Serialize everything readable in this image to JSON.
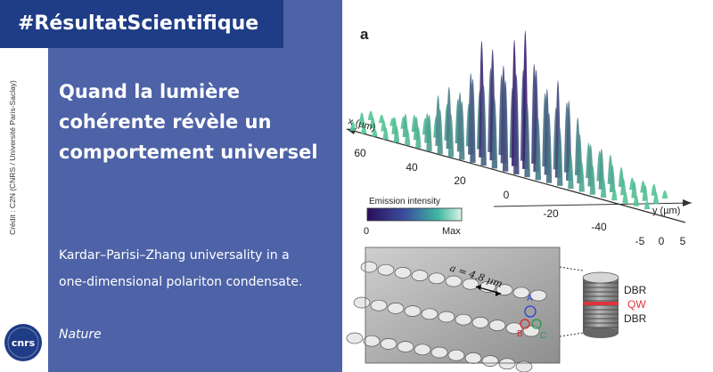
{
  "hashtag": "#RésultatScientifique",
  "title": [
    "Quand la lumière",
    "cohérente révèle un",
    "comportement universel"
  ],
  "paper_title": [
    "Kardar–Parisi–Zhang universality in a",
    "one-dimensional polariton condensate."
  ],
  "journal": "Nature",
  "credit": "Crédit : C2N (CNRS / Université Paris-Saclay)",
  "logo_text": "cnrs",
  "colors": {
    "panel": "#4d62a7",
    "hashtag_bg": "#1f3c86",
    "peak_low": "#3b1f72",
    "peak_high": "#55d39b"
  },
  "figure": {
    "panel_label": "a",
    "x_axis_label": "x (µm)",
    "x_ticks": [
      "60",
      "40",
      "20",
      "0",
      "-20",
      "-40"
    ],
    "y_axis_label": "y (µm)",
    "y_ticks": [
      "-5",
      "0",
      "5"
    ],
    "colorbar_title": "Emission intensity",
    "colorbar_min": "0",
    "colorbar_max": "Max",
    "period_label": "a = 4.8 µm",
    "pillar_labels": [
      "A",
      "B",
      "C"
    ],
    "stack_labels": [
      "DBR",
      "QW",
      "DBR"
    ]
  }
}
